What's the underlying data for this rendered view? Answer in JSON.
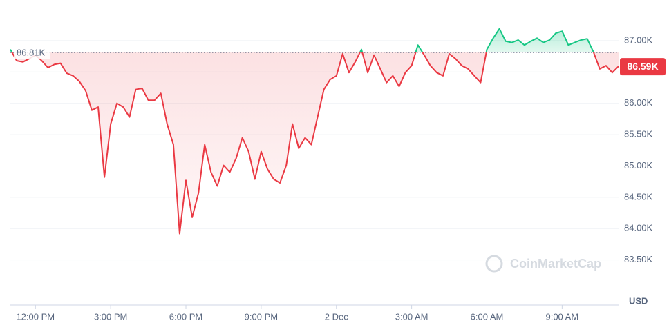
{
  "chart_data": {
    "type": "baseline-line",
    "values": [
      86860,
      86680,
      86660,
      86710,
      86770,
      86680,
      86570,
      86620,
      86640,
      86480,
      86440,
      86350,
      86200,
      85890,
      85940,
      84820,
      85670,
      86000,
      85940,
      85780,
      86220,
      86240,
      86050,
      86050,
      86160,
      85670,
      85340,
      83920,
      84770,
      84180,
      84570,
      85340,
      84900,
      84680,
      85010,
      84900,
      85120,
      85450,
      85230,
      84790,
      85230,
      84950,
      84790,
      84730,
      85010,
      85670,
      85280,
      85450,
      85340,
      85780,
      86220,
      86380,
      86440,
      86790,
      86490,
      86660,
      86860,
      86490,
      86770,
      86550,
      86330,
      86440,
      86270,
      86490,
      86600,
      86930,
      86770,
      86600,
      86490,
      86440,
      86790,
      86710,
      86600,
      86550,
      86440,
      86330,
      86860,
      87040,
      87190,
      86990,
      86970,
      87010,
      86930,
      86990,
      87040,
      86970,
      87010,
      87120,
      87150,
      86930,
      86970,
      87010,
      87030,
      86820,
      86550,
      86600,
      86490,
      86590
    ],
    "baseline": {
      "value": 86810,
      "label": "86.81K"
    },
    "last_price": {
      "value": 86590,
      "label": "86.59K"
    },
    "up_color": "#16c784",
    "down_color": "#ea3943",
    "xlim": [
      0,
      97
    ],
    "xticks": [
      {
        "value": 4,
        "label": "12:00 PM"
      },
      {
        "value": 16,
        "label": "3:00 PM"
      },
      {
        "value": 28,
        "label": "6:00 PM"
      },
      {
        "value": 40,
        "label": "9:00 PM"
      },
      {
        "value": 52,
        "label": "2 Dec"
      },
      {
        "value": 64,
        "label": "3:00 AM"
      },
      {
        "value": 76,
        "label": "6:00 AM"
      },
      {
        "value": 88,
        "label": "9:00 AM"
      }
    ],
    "ylim": [
      83000,
      87550
    ],
    "yticks": [
      {
        "value": 83500,
        "label": "83.50K"
      },
      {
        "value": 84000,
        "label": "84.00K"
      },
      {
        "value": 84500,
        "label": "84.50K"
      },
      {
        "value": 85000,
        "label": "85.00K"
      },
      {
        "value": 85500,
        "label": "85.50K"
      },
      {
        "value": 86000,
        "label": "86.00K"
      },
      {
        "value": 86500,
        "label": "86.50K"
      },
      {
        "value": 87000,
        "label": "87.00K"
      }
    ],
    "grid": true,
    "currency": "USD",
    "watermark": "CoinMarketCap"
  }
}
